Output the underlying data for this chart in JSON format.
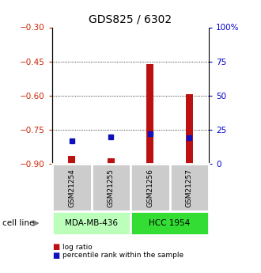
{
  "title": "GDS825 / 6302",
  "samples": [
    "GSM21254",
    "GSM21255",
    "GSM21256",
    "GSM21257"
  ],
  "log_ratio": [
    -0.865,
    -0.875,
    -0.46,
    -0.595
  ],
  "percentile_rank": [
    17,
    20,
    22,
    19
  ],
  "cell_lines": [
    {
      "label": "MDA-MB-436",
      "samples": [
        0,
        1
      ],
      "color": "#bbffbb"
    },
    {
      "label": "HCC 1954",
      "samples": [
        2,
        3
      ],
      "color": "#33dd33"
    }
  ],
  "left_ylim": [
    -0.9,
    -0.3
  ],
  "right_ylim": [
    0,
    100
  ],
  "left_yticks": [
    -0.9,
    -0.75,
    -0.6,
    -0.45,
    -0.3
  ],
  "right_yticks": [
    0,
    25,
    50,
    75,
    100
  ],
  "right_yticklabels": [
    "0",
    "25",
    "50",
    "75",
    "100%"
  ],
  "hlines": [
    -0.45,
    -0.6,
    -0.75
  ],
  "bar_color": "#bb1111",
  "square_color": "#1111bb",
  "bar_width": 0.18,
  "square_size": 25,
  "left_tick_color": "#cc2200",
  "right_tick_color": "#0000cc",
  "legend_log_ratio": "log ratio",
  "legend_percentile": "percentile rank within the sample",
  "cell_line_label": "cell line",
  "sample_box_color": "#cccccc",
  "title_fontsize": 10
}
